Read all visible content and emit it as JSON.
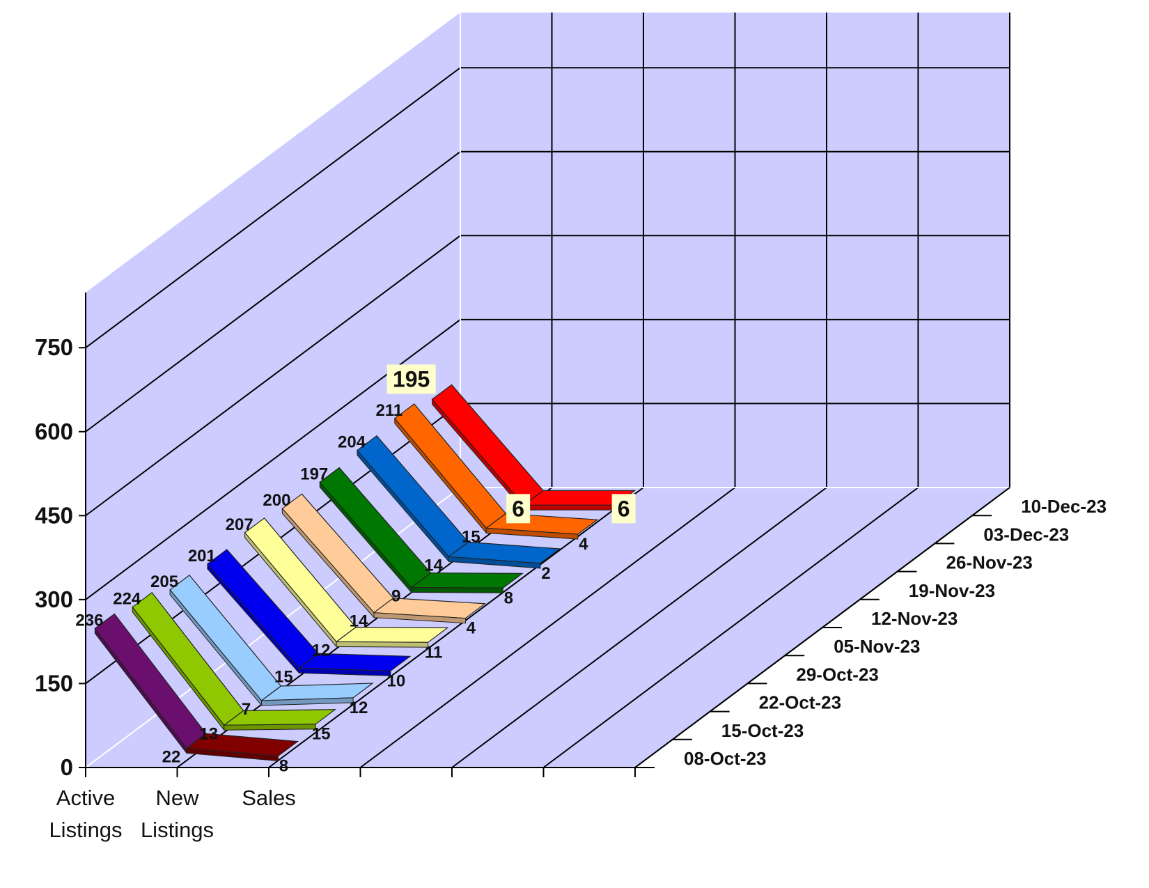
{
  "chart_data": {
    "type": "line",
    "style": "3d-ribbon",
    "title": "",
    "xlabel": "",
    "ylabel": "",
    "categories": [
      "Active Listings",
      "New Listings",
      "Sales"
    ],
    "category_label_lines": [
      [
        "Active",
        "Listings"
      ],
      [
        "New",
        "Listings"
      ],
      [
        "Sales"
      ]
    ],
    "ylim": [
      0,
      750
    ],
    "yticks": [
      "0",
      "150",
      "300",
      "450",
      "600",
      "750"
    ],
    "grid": true,
    "series": [
      {
        "name": "08-Oct-23",
        "color": "#6b0f6e",
        "values": [
          236,
          22,
          8
        ]
      },
      {
        "name": "15-Oct-23",
        "color": "#8fc800",
        "values": [
          224,
          13,
          15
        ]
      },
      {
        "name": "22-Oct-23",
        "color": "#99ccff",
        "values": [
          205,
          7,
          12
        ]
      },
      {
        "name": "29-Oct-23",
        "color": "#0000ee",
        "values": [
          201,
          15,
          10
        ]
      },
      {
        "name": "05-Nov-23",
        "color": "#ffff99",
        "values": [
          207,
          12,
          11
        ]
      },
      {
        "name": "12-Nov-23",
        "color": "#ffcc99",
        "values": [
          200,
          14,
          4
        ]
      },
      {
        "name": "19-Nov-23",
        "color": "#007700",
        "values": [
          197,
          9,
          8
        ]
      },
      {
        "name": "26-Nov-23",
        "color": "#0066cc",
        "values": [
          204,
          14,
          2
        ]
      },
      {
        "name": "03-Dec-23",
        "color": "#ff6600",
        "values": [
          211,
          15,
          4
        ]
      },
      {
        "name": "10-Dec-23",
        "color": "#ff0000",
        "values": [
          195,
          6,
          6
        ]
      }
    ],
    "first_series_sales_color": "#800000",
    "highlighted_series": "10-Dec-23",
    "colors": {
      "wall": "#ccccff",
      "floor": "#ccccff",
      "gridline": "#000000",
      "edge": "#ffffff",
      "label_highlight_bg": "#ffffcc"
    }
  }
}
